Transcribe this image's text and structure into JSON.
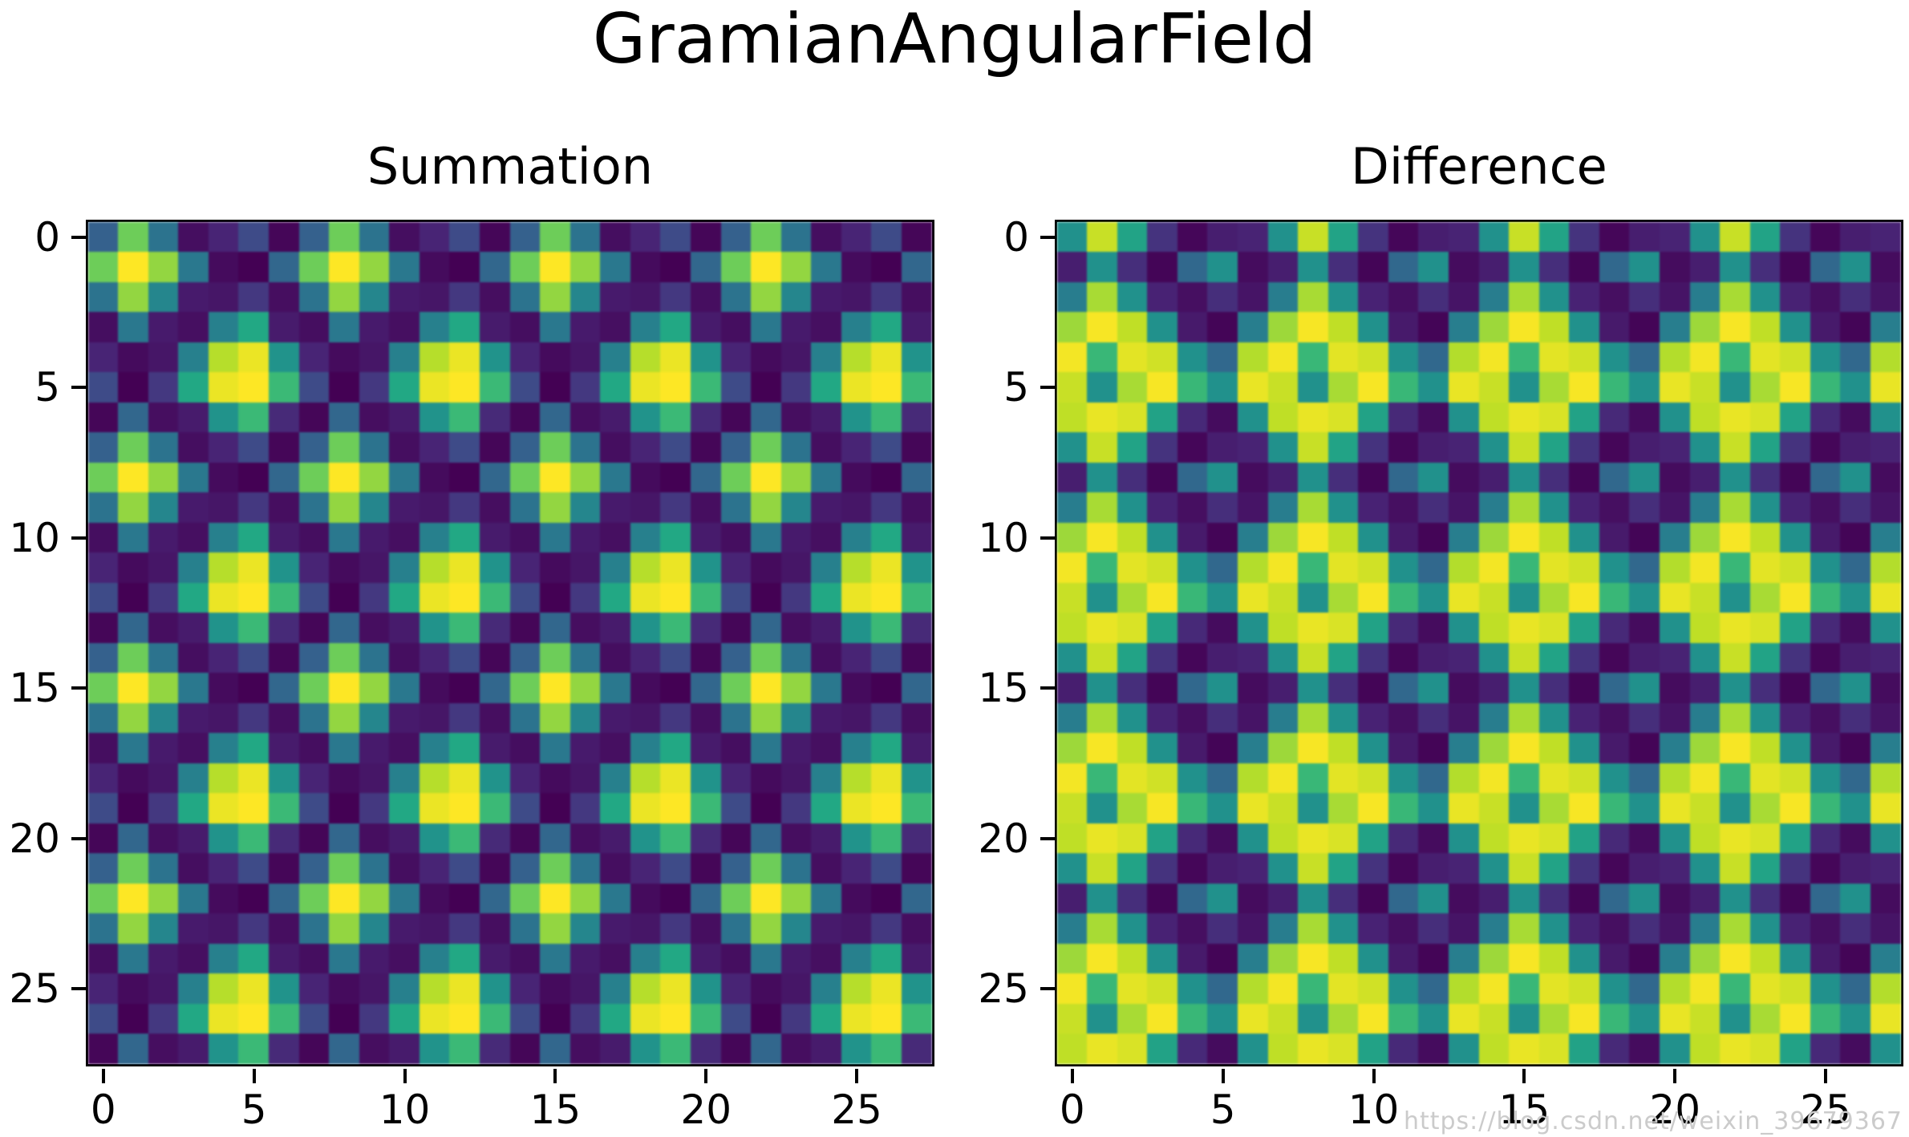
{
  "figure": {
    "title": "GramianAngularField",
    "background": "#ffffff",
    "watermark": "https://blog.csdn.net/weixin_39679367",
    "text_color": "#000000",
    "watermark_color": "#cbcbcb"
  },
  "chart_data": [
    {
      "type": "heatmap",
      "title": "Summation",
      "grid_size": 28,
      "x_ticks": [
        "0",
        "5",
        "10",
        "15",
        "20",
        "25"
      ],
      "y_ticks": [
        "0",
        "5",
        "10",
        "15",
        "20",
        "25"
      ],
      "value_range": [
        -1,
        1
      ],
      "colormap": "viridis",
      "colormap_stops": [
        [
          0.0,
          "#440154"
        ],
        [
          0.1,
          "#482475"
        ],
        [
          0.2,
          "#414487"
        ],
        [
          0.3,
          "#35608d"
        ],
        [
          0.4,
          "#2a788e"
        ],
        [
          0.5,
          "#21918c"
        ],
        [
          0.6,
          "#22a884"
        ],
        [
          0.7,
          "#44bf70"
        ],
        [
          0.8,
          "#7ad151"
        ],
        [
          0.9,
          "#bddf26"
        ],
        [
          1.0,
          "#fde725"
        ]
      ],
      "tile": 4,
      "matrix_rule": "matrix[i][j] = base_block[i % 7][j % 7]",
      "base_block": [
        [
          -0.391,
          0.551,
          -0.243,
          -0.927,
          -0.797,
          -0.551,
          -0.973
        ],
        [
          0.551,
          1.0,
          0.676,
          -0.198,
          -0.943,
          -1.0,
          -0.345
        ],
        [
          -0.243,
          0.676,
          -0.087,
          -0.856,
          -0.882,
          -0.676,
          -0.925
        ],
        [
          -0.927,
          -0.198,
          -0.856,
          -0.922,
          -0.139,
          0.198,
          -0.852
        ],
        [
          -0.797,
          -0.943,
          -0.882,
          -0.139,
          0.779,
          0.943,
          0.014
        ],
        [
          -0.551,
          -1.0,
          -0.676,
          0.198,
          0.943,
          1.0,
          0.345
        ],
        [
          -0.973,
          -0.345,
          -0.925,
          -0.852,
          0.014,
          0.345,
          -0.762
        ]
      ]
    },
    {
      "type": "heatmap",
      "title": "Difference",
      "grid_size": 28,
      "x_ticks": [
        "0",
        "5",
        "10",
        "15",
        "20",
        "25"
      ],
      "y_ticks": [
        "0",
        "5",
        "10",
        "15",
        "20",
        "25"
      ],
      "value_range": [
        -1,
        1
      ],
      "colormap": "viridis",
      "colormap_stops": [
        [
          0.0,
          "#440154"
        ],
        [
          0.1,
          "#482475"
        ],
        [
          0.2,
          "#414487"
        ],
        [
          0.3,
          "#35608d"
        ],
        [
          0.4,
          "#2a788e"
        ],
        [
          0.5,
          "#21918c"
        ],
        [
          0.6,
          "#22a884"
        ],
        [
          0.7,
          "#44bf70"
        ],
        [
          0.8,
          "#7ad151"
        ],
        [
          0.9,
          "#bddf26"
        ],
        [
          1.0,
          "#fde725"
        ]
      ],
      "tile": 4,
      "matrix_rule": "matrix[i][j] = base_block[i % 7][j % 7]",
      "base_block": [
        [
          0.0,
          0.835,
          0.158,
          -0.705,
          -0.97,
          -0.835,
          -0.805
        ],
        [
          -0.835,
          0.0,
          -0.737,
          -0.98,
          -0.333,
          0.0,
          -0.939
        ],
        [
          -0.158,
          0.737,
          0.0,
          -0.809,
          -0.92,
          -0.737,
          -0.889
        ],
        [
          0.705,
          0.98,
          0.809,
          0.0,
          -0.859,
          -0.98,
          -0.152
        ],
        [
          0.97,
          0.333,
          0.92,
          0.859,
          0.0,
          -0.333,
          0.771
        ],
        [
          0.835,
          0.0,
          0.737,
          0.98,
          0.333,
          0.0,
          0.939
        ],
        [
          0.805,
          0.939,
          0.889,
          0.152,
          -0.771,
          -0.939,
          0.0
        ]
      ]
    }
  ]
}
